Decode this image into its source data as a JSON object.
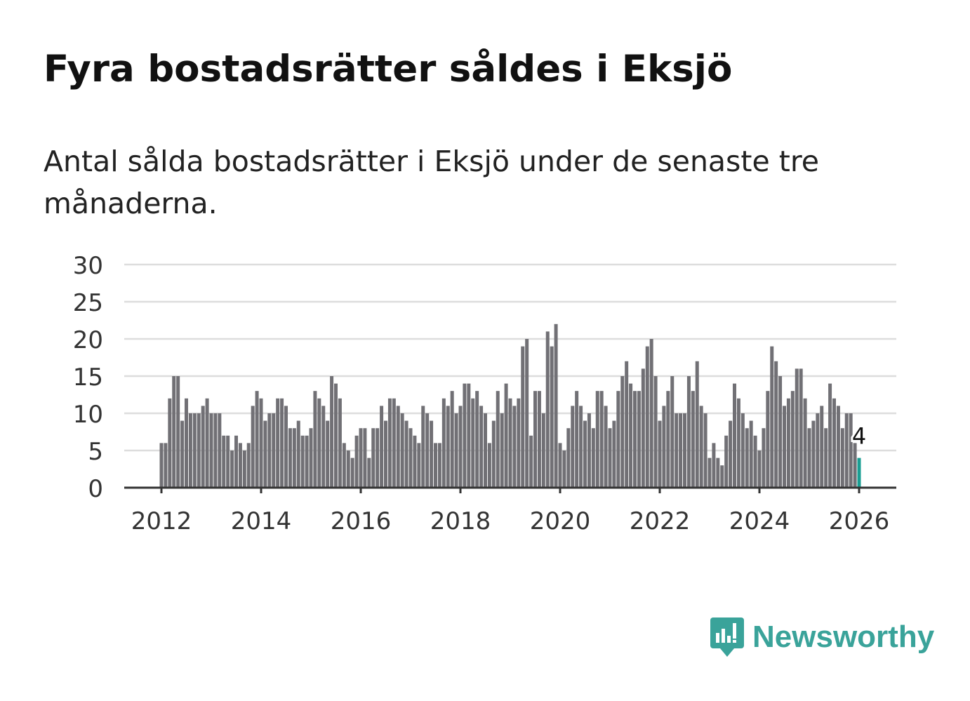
{
  "title": "Fyra bostadsrätter såldes i Eksjö",
  "subtitle": "Antal sålda bostadsrätter i Eksjö under de senaste tre månaderna.",
  "brand": "Newsworthy",
  "colors": {
    "bar": "#717075",
    "highlight": "#1a9e93",
    "grid": "#dddddd",
    "axis": "#333333",
    "brand": "#3aa39a"
  },
  "chart_data": {
    "type": "bar",
    "title": "Fyra bostadsrätter såldes i Eksjö",
    "xlabel": "",
    "ylabel": "",
    "ylim": [
      0,
      30
    ],
    "yticks": [
      "0",
      "5",
      "10",
      "15",
      "20",
      "25",
      "30"
    ],
    "xticks": [
      "2012",
      "2014",
      "2016",
      "2018",
      "2020",
      "2022",
      "2024",
      "2026"
    ],
    "grid": true,
    "start": "2012-01",
    "frequency": "monthly",
    "annotation": {
      "label": "4",
      "target": "last"
    },
    "values": [
      6,
      6,
      12,
      15,
      15,
      9,
      12,
      10,
      10,
      10,
      11,
      12,
      10,
      10,
      10,
      7,
      7,
      5,
      7,
      6,
      5,
      6,
      11,
      13,
      12,
      9,
      10,
      10,
      12,
      12,
      11,
      8,
      8,
      9,
      7,
      7,
      8,
      13,
      12,
      11,
      9,
      15,
      14,
      12,
      6,
      5,
      4,
      7,
      8,
      8,
      4,
      8,
      8,
      11,
      9,
      12,
      12,
      11,
      10,
      9,
      8,
      7,
      6,
      11,
      10,
      9,
      6,
      6,
      12,
      11,
      13,
      10,
      11,
      14,
      14,
      12,
      13,
      11,
      10,
      6,
      9,
      13,
      10,
      14,
      12,
      11,
      12,
      19,
      20,
      7,
      13,
      13,
      10,
      21,
      19,
      22,
      6,
      5,
      8,
      11,
      13,
      11,
      9,
      10,
      8,
      13,
      13,
      11,
      8,
      9,
      13,
      15,
      17,
      14,
      13,
      13,
      16,
      19,
      20,
      15,
      9,
      11,
      13,
      15,
      10,
      10,
      10,
      15,
      13,
      17,
      11,
      10,
      4,
      6,
      4,
      3,
      7,
      9,
      14,
      12,
      10,
      8,
      9,
      7,
      5,
      8,
      13,
      19,
      17,
      15,
      11,
      12,
      13,
      16,
      16,
      12,
      8,
      9,
      10,
      11,
      8,
      14,
      12,
      11,
      8,
      10,
      10,
      6,
      4
    ]
  }
}
